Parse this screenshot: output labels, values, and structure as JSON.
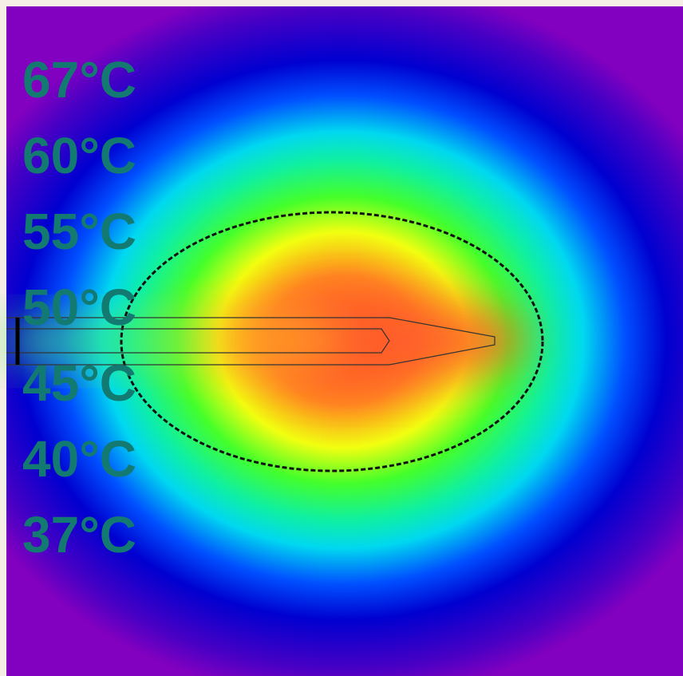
{
  "labels": [
    "67°C",
    "60°C",
    "55°C",
    "50°C",
    "45°C",
    "40°C",
    "37°C"
  ]
}
